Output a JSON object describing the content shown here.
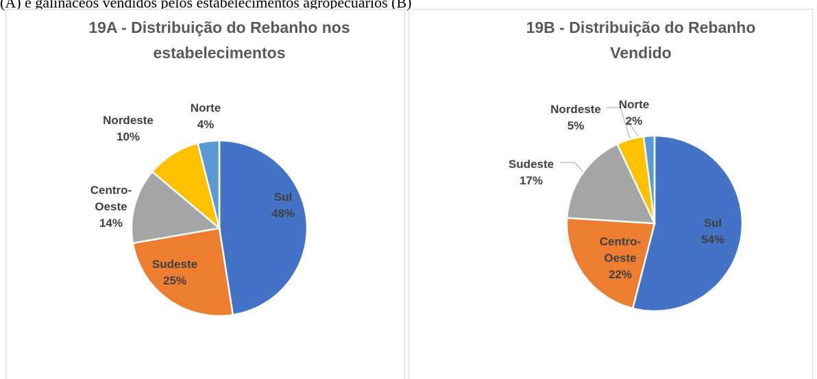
{
  "caption": "(A) e galináceos vendidos pelos estabelecimentos agropecuários (B)",
  "chart_data": [
    {
      "type": "pie",
      "title": "19A - Distribuição do Rebanho nos estabelecimentos",
      "categories": [
        "Sul",
        "Sudeste",
        "Centro-Oeste",
        "Nordeste",
        "Norte"
      ],
      "values": [
        48,
        25,
        14,
        10,
        4
      ],
      "value_labels": [
        "48%",
        "25%",
        "14%",
        "10%",
        "4%"
      ],
      "colors": [
        "#4472c4",
        "#ed7d31",
        "#a5a5a5",
        "#ffc000",
        "#5b9bd5"
      ]
    },
    {
      "type": "pie",
      "title": "19B - Distribuição do Rebanho Vendido",
      "categories": [
        "Sul",
        "Centro-Oeste",
        "Sudeste",
        "Nordeste",
        "Norte"
      ],
      "values": [
        54,
        22,
        17,
        5,
        2
      ],
      "value_labels": [
        "54%",
        "22%",
        "17%",
        "5%",
        "2%"
      ],
      "colors": [
        "#4472c4",
        "#ed7d31",
        "#a5a5a5",
        "#ffc000",
        "#5b9bd5"
      ]
    }
  ]
}
